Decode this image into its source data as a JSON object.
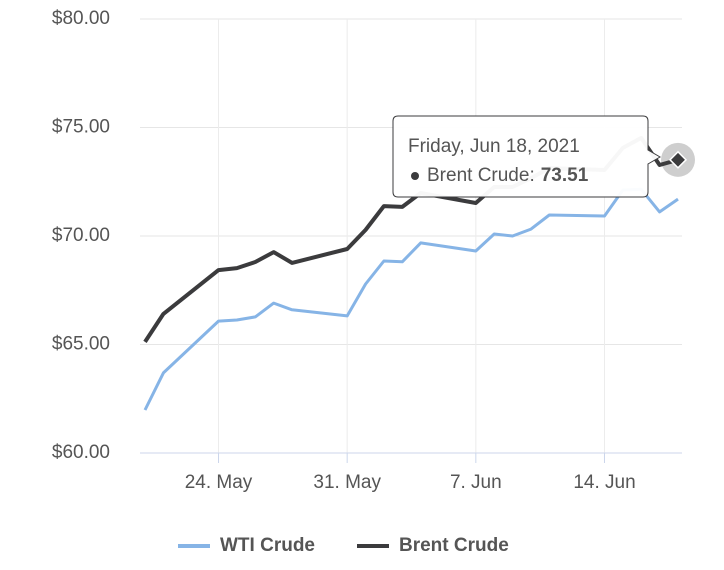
{
  "chart_data": {
    "type": "line",
    "x": [
      "2021-05-20",
      "2021-05-21",
      "2021-05-24",
      "2021-05-25",
      "2021-05-26",
      "2021-05-27",
      "2021-05-28",
      "2021-05-31",
      "2021-06-01",
      "2021-06-02",
      "2021-06-03",
      "2021-06-04",
      "2021-06-07",
      "2021-06-08",
      "2021-06-09",
      "2021-06-10",
      "2021-06-11",
      "2021-06-14",
      "2021-06-15",
      "2021-06-16",
      "2021-06-17",
      "2021-06-18"
    ],
    "series": [
      {
        "name": "WTI Crude",
        "color": "#86b4e6",
        "values": [
          61.98,
          63.69,
          66.08,
          66.13,
          66.27,
          66.91,
          66.6,
          66.32,
          67.79,
          68.85,
          68.81,
          69.68,
          69.31,
          70.09,
          70.0,
          70.32,
          70.97,
          70.92,
          72.12,
          72.15,
          71.11,
          71.7
        ]
      },
      {
        "name": "Brent Crude",
        "color": "#3b3b3d",
        "values": [
          65.12,
          66.41,
          68.43,
          68.52,
          68.8,
          69.26,
          68.76,
          69.4,
          70.28,
          71.38,
          71.34,
          71.98,
          71.52,
          72.26,
          72.26,
          72.67,
          73.13,
          73.04,
          74.06,
          74.52,
          73.27,
          73.51
        ]
      }
    ],
    "xlim": [
      "2021-05-20",
      "2021-06-18"
    ],
    "xticks": [
      {
        "value": "2021-05-24",
        "label": "24. May"
      },
      {
        "value": "2021-05-31",
        "label": "31. May"
      },
      {
        "value": "2021-06-07",
        "label": "7. Jun"
      },
      {
        "value": "2021-06-14",
        "label": "14. Jun"
      }
    ],
    "ylim": [
      60,
      80
    ],
    "yticks": [
      {
        "value": 60,
        "label": "$60.00"
      },
      {
        "value": 65,
        "label": "$65.00"
      },
      {
        "value": 70,
        "label": "$70.00"
      },
      {
        "value": 75,
        "label": "$75.00"
      },
      {
        "value": 80,
        "label": "$80.00"
      }
    ],
    "grid": true,
    "legend": "bottom",
    "tooltip": {
      "header": "Friday, Jun 18, 2021",
      "label": "Brent Crude:"
    }
  }
}
